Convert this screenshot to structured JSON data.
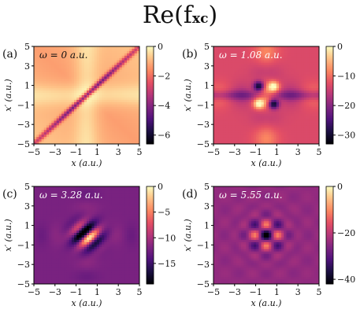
{
  "figure": {
    "title": "Re(f",
    "title_sub": "xc",
    "title_close": ")"
  },
  "chart_data": [
    {
      "type": "heatmap",
      "label": "(a)",
      "annotation": "ω = 0 a.u.",
      "xlabel": "x (a.u.)",
      "ylabel": "x′ (a.u.)",
      "xlim": [
        -5,
        5
      ],
      "ylim": [
        -5,
        5
      ],
      "xticks": [
        "−5",
        "−3",
        "−1",
        "1",
        "3",
        "5"
      ],
      "yticks": [
        "5",
        "3",
        "1",
        "−1",
        "−3",
        "−5"
      ],
      "colorbar_range": [
        -6.6,
        0
      ],
      "colorbar_ticks": [
        "0",
        "−2",
        "−4",
        "−6"
      ],
      "colorbar_tick_values": [
        0,
        -2,
        -4,
        -6
      ],
      "colormap": "magma",
      "pattern": "diagonal-band"
    },
    {
      "type": "heatmap",
      "label": "(b)",
      "annotation": "ω = 1.08 a.u.",
      "xlabel": "x (a.u.)",
      "ylabel": "x′ (a.u.)",
      "xlim": [
        -5,
        5
      ],
      "ylim": [
        -5,
        5
      ],
      "xticks": [
        "−5",
        "−3",
        "−1",
        "1",
        "3",
        "5"
      ],
      "yticks": [
        "5",
        "3",
        "1",
        "−1",
        "−3",
        "−5"
      ],
      "colorbar_range": [
        -33,
        0
      ],
      "colorbar_ticks": [
        "0",
        "−10",
        "−20",
        "−30"
      ],
      "colorbar_tick_values": [
        0,
        -10,
        -20,
        -30
      ],
      "colormap": "magma",
      "pattern": "cross"
    },
    {
      "type": "heatmap",
      "label": "(c)",
      "annotation": "ω = 3.28 a.u.",
      "xlabel": "x (a.u.)",
      "ylabel": "x′ (a.u.)",
      "xlim": [
        -5,
        5
      ],
      "ylim": [
        -5,
        5
      ],
      "xticks": [
        "−5",
        "−3",
        "−1",
        "1",
        "3",
        "5"
      ],
      "yticks": [
        "5",
        "3",
        "1",
        "−1",
        "−3",
        "−5"
      ],
      "colorbar_range": [
        -19,
        0
      ],
      "colorbar_ticks": [
        "0",
        "−5",
        "−10",
        "−15"
      ],
      "colorbar_tick_values": [
        0,
        -5,
        -10,
        -15
      ],
      "colormap": "magma",
      "pattern": "stripes"
    },
    {
      "type": "heatmap",
      "label": "(d)",
      "annotation": "ω = 5.55 a.u.",
      "xlabel": "x (a.u.)",
      "ylabel": "x′ (a.u.)",
      "xlim": [
        -5,
        5
      ],
      "ylim": [
        -5,
        5
      ],
      "xticks": [
        "−5",
        "−3",
        "−1",
        "1",
        "3",
        "5"
      ],
      "yticks": [
        "5",
        "3",
        "1",
        "−1",
        "−3",
        "−5"
      ],
      "colorbar_range": [
        -42,
        0
      ],
      "colorbar_ticks": [
        "0",
        "−20",
        "−40"
      ],
      "colorbar_tick_values": [
        0,
        -20,
        -40
      ],
      "colormap": "magma",
      "pattern": "checker"
    }
  ]
}
